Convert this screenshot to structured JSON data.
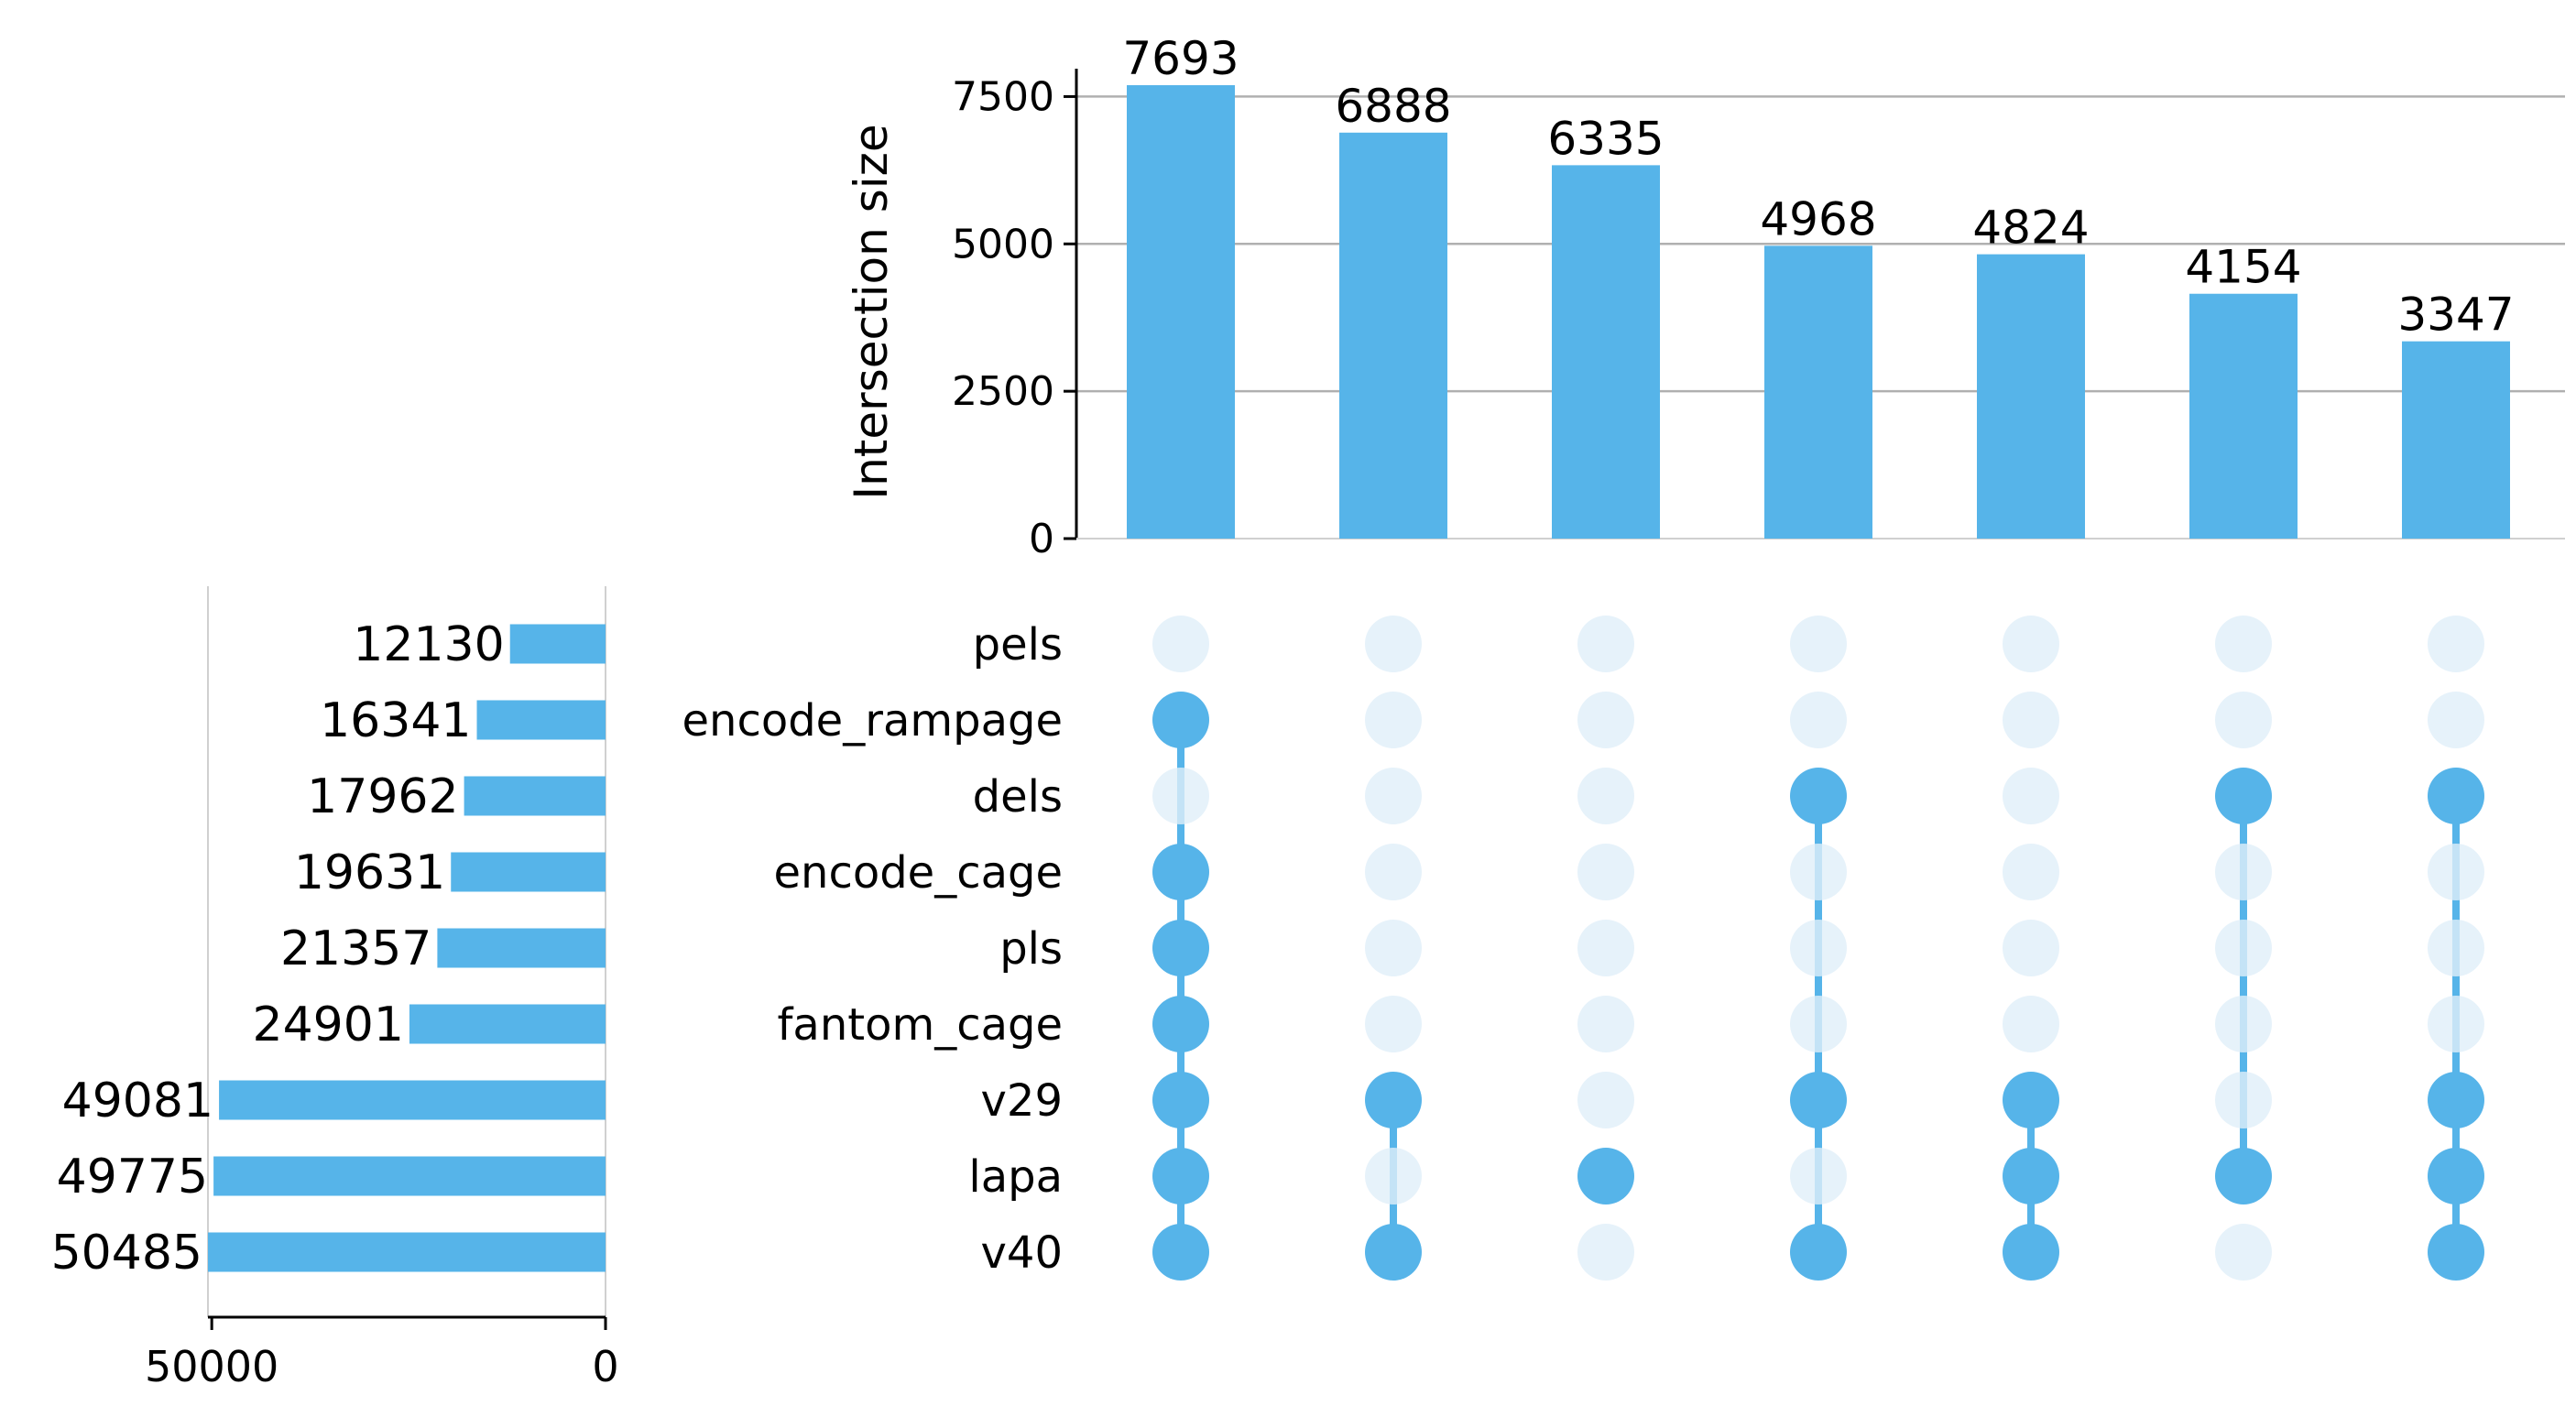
{
  "colors": {
    "bar": "#56b4e9",
    "dot_active": "#56b4e9",
    "dot_inactive": "#e0eff9",
    "grid": "#b0b0b0",
    "axis": "#000000"
  },
  "chart_data": {
    "type": "bar",
    "subtype": "upset",
    "intersections": {
      "ylabel": "Intersection size",
      "ylim": [
        0,
        7693
      ],
      "yticks": [
        0,
        2500,
        5000,
        7500
      ],
      "values": [
        7693,
        6888,
        6335,
        4968,
        4824,
        4154,
        3347
      ],
      "grid": true,
      "members": [
        [
          "encode_rampage",
          "encode_cage",
          "pls",
          "fantom_cage",
          "v29",
          "lapa",
          "v40"
        ],
        [
          "v29",
          "v40"
        ],
        [
          "lapa"
        ],
        [
          "dels",
          "v29",
          "v40"
        ],
        [
          "v29",
          "lapa",
          "v40"
        ],
        [
          "dels",
          "lapa"
        ],
        [
          "dels",
          "v29",
          "lapa",
          "v40"
        ]
      ]
    },
    "sets": {
      "names": [
        "pels",
        "encode_rampage",
        "dels",
        "encode_cage",
        "pls",
        "fantom_cage",
        "v29",
        "lapa",
        "v40"
      ],
      "sizes": [
        12130,
        16341,
        17962,
        19631,
        21357,
        24901,
        49081,
        49775,
        50485
      ],
      "xticks": [
        50000,
        0
      ],
      "xlim": [
        50485,
        0
      ]
    }
  }
}
